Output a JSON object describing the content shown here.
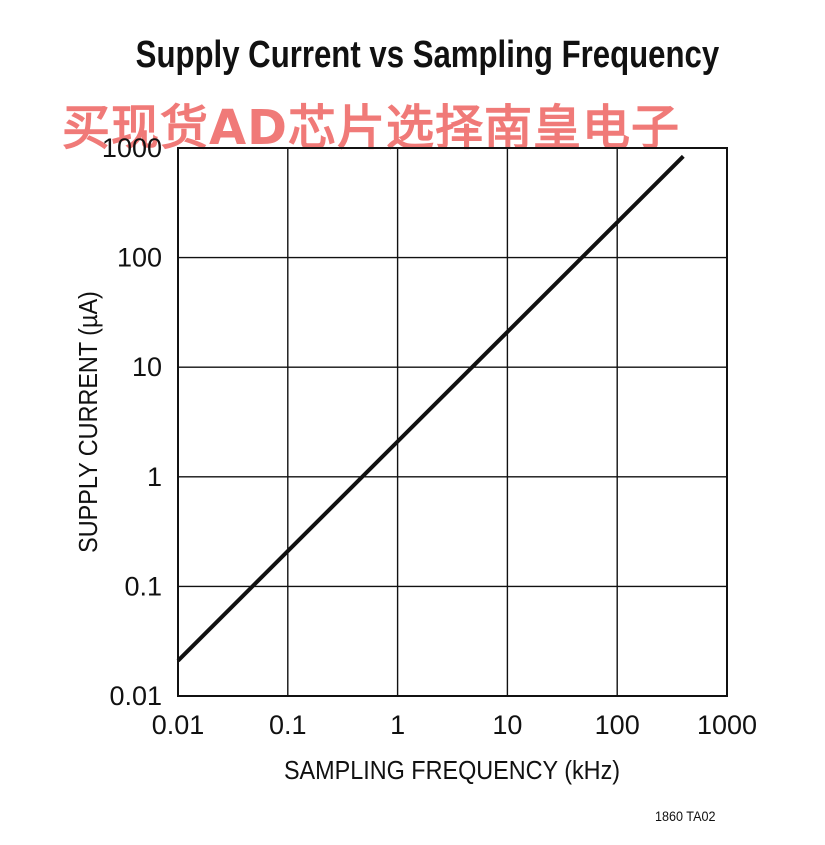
{
  "chart_data": {
    "type": "line",
    "title": "Supply Current vs Sampling Frequency",
    "xlabel": "SAMPLING FREQUENCY (kHz)",
    "ylabel": "SUPPLY CURRENT (µA)",
    "xscale": "log",
    "yscale": "log",
    "xlim": [
      0.01,
      1000
    ],
    "ylim": [
      0.01,
      1000
    ],
    "xticks": [
      "0.01",
      "0.1",
      "1",
      "10",
      "100",
      "1000"
    ],
    "yticks": [
      "0.01",
      "0.1",
      "1",
      "10",
      "100",
      "1000"
    ],
    "grid": true,
    "series": [
      {
        "x": [
          0.01,
          0.1,
          1,
          10,
          100,
          400
        ],
        "y": [
          0.021,
          0.21,
          2.1,
          21,
          210,
          840
        ],
        "color": "#111111"
      }
    ]
  },
  "watermark": "买现货AD芯片选择南皇电子",
  "figure_code": "1860 TA02",
  "colors": {
    "line": "#111111",
    "grid": "#111111",
    "watermark": "#f07a78"
  }
}
